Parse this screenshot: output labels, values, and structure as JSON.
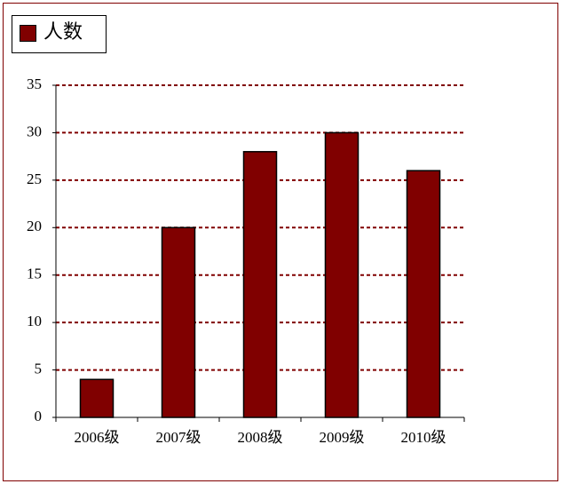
{
  "chart_data": {
    "type": "bar",
    "categories": [
      "2006级",
      "2007级",
      "2008级",
      "2009级",
      "2010级"
    ],
    "series": [
      {
        "name": "人数",
        "color": "#800000",
        "values": [
          4,
          20,
          28,
          30,
          26
        ]
      }
    ],
    "ylim": [
      0,
      35
    ],
    "yticks": [
      0,
      5,
      10,
      15,
      20,
      25,
      30,
      35
    ],
    "grid": true,
    "legend": "top-left"
  }
}
